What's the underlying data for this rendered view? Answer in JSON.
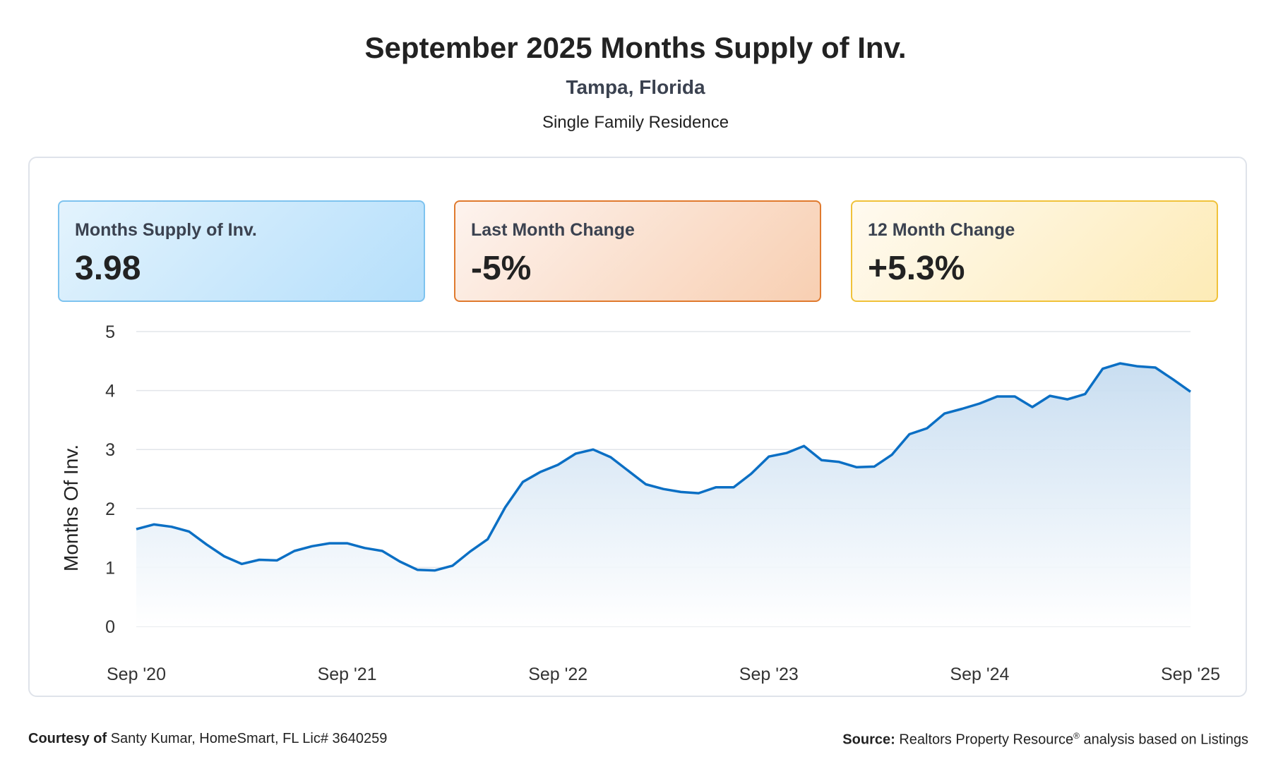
{
  "header": {
    "title": "September 2025 Months Supply of Inv.",
    "location": "Tampa, Florida",
    "property_type": "Single Family Residence"
  },
  "cards": [
    {
      "label": "Months Supply of Inv.",
      "value": "3.98",
      "accent": "#7ec3ef"
    },
    {
      "label": "Last Month Change",
      "value": "-5%",
      "accent": "#e07a2e"
    },
    {
      "label": "12 Month Change",
      "value": "+5.3%",
      "accent": "#f0c23a"
    }
  ],
  "chart_data": {
    "type": "area",
    "ylabel": "Months Of Inv.",
    "ylim": [
      0,
      5
    ],
    "yticks": [
      "0",
      "1",
      "2",
      "3",
      "4",
      "5"
    ],
    "xtick_labels": [
      "Sep '20",
      "Sep '21",
      "Sep '22",
      "Sep '23",
      "Sep '24",
      "Sep '25"
    ],
    "grid": true,
    "line_color": "#0b6fc4",
    "fill_color": "#cfe2f3",
    "x": [
      "Sep 2020",
      "Oct 2020",
      "Nov 2020",
      "Dec 2020",
      "Jan 2021",
      "Feb 2021",
      "Mar 2021",
      "Apr 2021",
      "May 2021",
      "Jun 2021",
      "Jul 2021",
      "Aug 2021",
      "Sep 2021",
      "Oct 2021",
      "Nov 2021",
      "Dec 2021",
      "Jan 2022",
      "Feb 2022",
      "Mar 2022",
      "Apr 2022",
      "May 2022",
      "Jun 2022",
      "Jul 2022",
      "Aug 2022",
      "Sep 2022",
      "Oct 2022",
      "Nov 2022",
      "Dec 2022",
      "Jan 2023",
      "Feb 2023",
      "Mar 2023",
      "Apr 2023",
      "May 2023",
      "Jun 2023",
      "Jul 2023",
      "Aug 2023",
      "Sep 2023",
      "Oct 2023",
      "Nov 2023",
      "Dec 2023",
      "Jan 2024",
      "Feb 2024",
      "Mar 2024",
      "Apr 2024",
      "May 2024",
      "Jun 2024",
      "Jul 2024",
      "Aug 2024",
      "Sep 2024",
      "Oct 2024",
      "Nov 2024",
      "Dec 2024",
      "Jan 2025",
      "Feb 2025",
      "Mar 2025",
      "Apr 2025",
      "May 2025",
      "Jun 2025",
      "Jul 2025",
      "Aug 2025",
      "Sep 2025"
    ],
    "series": [
      {
        "values": [
          1.65,
          1.73,
          1.69,
          1.61,
          1.39,
          1.19,
          1.06,
          1.13,
          1.12,
          1.28,
          1.36,
          1.41,
          1.41,
          1.33,
          1.28,
          1.1,
          0.96,
          0.95,
          1.03,
          1.27,
          1.48,
          2.02,
          2.45,
          2.62,
          2.74,
          2.93,
          3.0,
          2.87,
          2.64,
          2.41,
          2.33,
          2.28,
          2.26,
          2.36,
          2.36,
          2.59,
          2.88,
          2.94,
          3.06,
          2.82,
          2.79,
          2.7,
          2.71,
          2.91,
          3.26,
          3.36,
          3.61,
          3.69,
          3.78,
          3.9,
          3.9,
          3.72,
          3.91,
          3.85,
          3.94,
          4.37,
          4.46,
          4.41,
          4.39,
          4.19,
          3.98
        ]
      }
    ]
  },
  "footer": {
    "courtesy_label": "Courtesy of",
    "courtesy_text": "Santy Kumar, HomeSmart, FL Lic# 3640259",
    "source_label": "Source:",
    "source_text_a": "Realtors Property Resource",
    "source_reg": "®",
    "source_text_b": " analysis based on Listings"
  }
}
